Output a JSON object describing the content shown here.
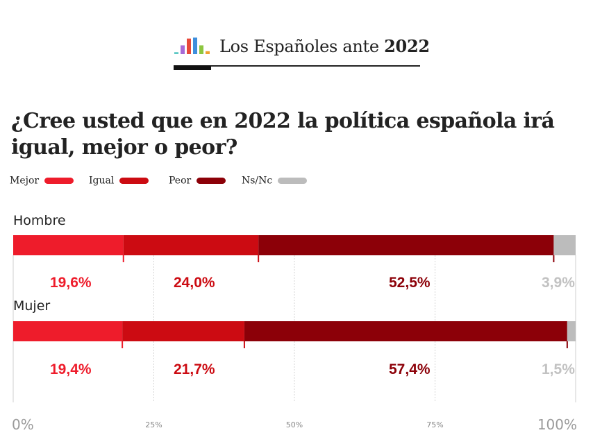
{
  "header": {
    "title": "Los Españoles ante",
    "year": "2022",
    "logo_colors": [
      "#5ec8c4",
      "#a86ad6",
      "#e8483a",
      "#3f8fdc",
      "#8cc63f",
      "#f0a030"
    ],
    "logo_heights": [
      2,
      9,
      16,
      17,
      9,
      3
    ]
  },
  "chart_data": {
    "type": "bar",
    "stacked": true,
    "orientation": "horizontal",
    "title": "¿Cree usted que en 2022 la política española irá igual, mejor o peor?",
    "categories": [
      "Hombre",
      "Mujer"
    ],
    "series": [
      {
        "name": "Mejor",
        "color": "#ee1c2b",
        "values": [
          19.6,
          19.4
        ],
        "labels": [
          "19,6%",
          "19,4%"
        ]
      },
      {
        "name": "Igual",
        "color": "#cc0b12",
        "values": [
          24.0,
          21.7
        ],
        "labels": [
          "24,0%",
          "21,7%"
        ]
      },
      {
        "name": "Peor",
        "color": "#8c0008",
        "values": [
          52.5,
          57.4
        ],
        "labels": [
          "52,5%",
          "57,4%"
        ]
      },
      {
        "name": "Ns/Nc",
        "color": "#bcbcbc",
        "values": [
          3.9,
          1.5
        ],
        "labels": [
          "3,9%",
          "1,5%"
        ]
      }
    ],
    "xlim": [
      0,
      100
    ],
    "ticks": [
      {
        "value": 0,
        "label": "0%",
        "style": "big"
      },
      {
        "value": 25,
        "label": "25%",
        "style": "small"
      },
      {
        "value": 50,
        "label": "50%",
        "style": "small"
      },
      {
        "value": 75,
        "label": "75%",
        "style": "small"
      },
      {
        "value": 100,
        "label": "100%",
        "style": "big"
      }
    ],
    "gridlines": "dashed-vertical",
    "legend_position": "top-left"
  }
}
